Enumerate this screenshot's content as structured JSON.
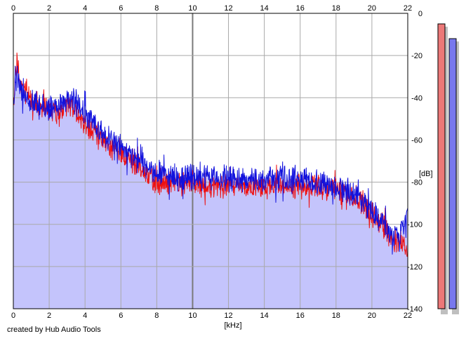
{
  "credit": "created by Hub Audio Tools",
  "colors": {
    "background": "#ffffff",
    "fill": "#c4c4fc",
    "left_channel": "#ee1111",
    "right_channel": "#1111dd",
    "grid": "#a9a9a9",
    "grid_major": "#7a7a7a",
    "left_meter": "#ec7878",
    "right_meter": "#7878ee",
    "meter_shadow": "#bfbfbf"
  },
  "chart_data": {
    "type": "line",
    "title": "",
    "xlabel": "[kHz]",
    "ylabel": "[dB]",
    "xlim": [
      0,
      22
    ],
    "ylim": [
      -140,
      0
    ],
    "x_ticks": [
      0,
      2,
      4,
      6,
      8,
      10,
      12,
      14,
      16,
      18,
      20,
      22
    ],
    "x_tick_labels": [
      "0",
      "2",
      "4",
      "6",
      "8",
      "10",
      "12",
      "14",
      "16",
      "18",
      "20",
      "22"
    ],
    "y_ticks": [
      0,
      -20,
      -40,
      -60,
      -80,
      -100,
      -120,
      -140
    ],
    "y_tick_labels": [
      "0",
      "-20",
      "-40",
      "-60",
      "-80",
      "-100",
      "-120",
      "-140"
    ],
    "grid": true,
    "legend": "none",
    "series": [
      {
        "color": "#ee1111",
        "x": [
          0,
          0.1,
          0.2,
          0.3,
          0.5,
          0.8,
          1,
          1.5,
          2,
          2.5,
          3,
          3.2,
          3.5,
          4,
          4.5,
          5,
          5.5,
          6,
          6.5,
          7,
          7.5,
          8,
          9,
          10,
          11,
          12,
          13,
          14,
          15,
          16,
          17,
          18,
          19,
          19.5,
          20,
          20.5,
          21,
          21.5,
          22
        ],
        "values": [
          -43,
          -30,
          -23,
          -28,
          -35,
          -38,
          -42,
          -44,
          -46,
          -47,
          -44,
          -42,
          -46,
          -53,
          -56,
          -60,
          -63,
          -66,
          -70,
          -73,
          -77,
          -80,
          -81,
          -81,
          -82,
          -82,
          -82,
          -82,
          -81,
          -82,
          -82,
          -83,
          -86,
          -90,
          -95,
          -100,
          -105,
          -108,
          -112
        ]
      },
      {
        "color": "#1111dd",
        "x": [
          0,
          0.1,
          0.2,
          0.3,
          0.5,
          0.8,
          1,
          1.5,
          2,
          2.5,
          3,
          3.2,
          3.5,
          4,
          4.5,
          5,
          5.5,
          6,
          6.5,
          7,
          7.5,
          8,
          9,
          10,
          11,
          12,
          13,
          14,
          15,
          16,
          17,
          18,
          19,
          19.5,
          20,
          20.5,
          21,
          21.5,
          22
        ],
        "values": [
          -45,
          -34,
          -28,
          -32,
          -38,
          -40,
          -43,
          -44,
          -45,
          -44,
          -41,
          -40,
          -43,
          -47,
          -52,
          -57,
          -60,
          -63,
          -67,
          -70,
          -73,
          -76,
          -78,
          -78,
          -78,
          -78,
          -79,
          -79,
          -78,
          -79,
          -80,
          -82,
          -85,
          -88,
          -93,
          -98,
          -104,
          -108,
          -96
        ]
      }
    ],
    "meters": [
      {
        "channel": "left",
        "peak_db": -5
      },
      {
        "channel": "right",
        "peak_db": -12
      }
    ]
  }
}
